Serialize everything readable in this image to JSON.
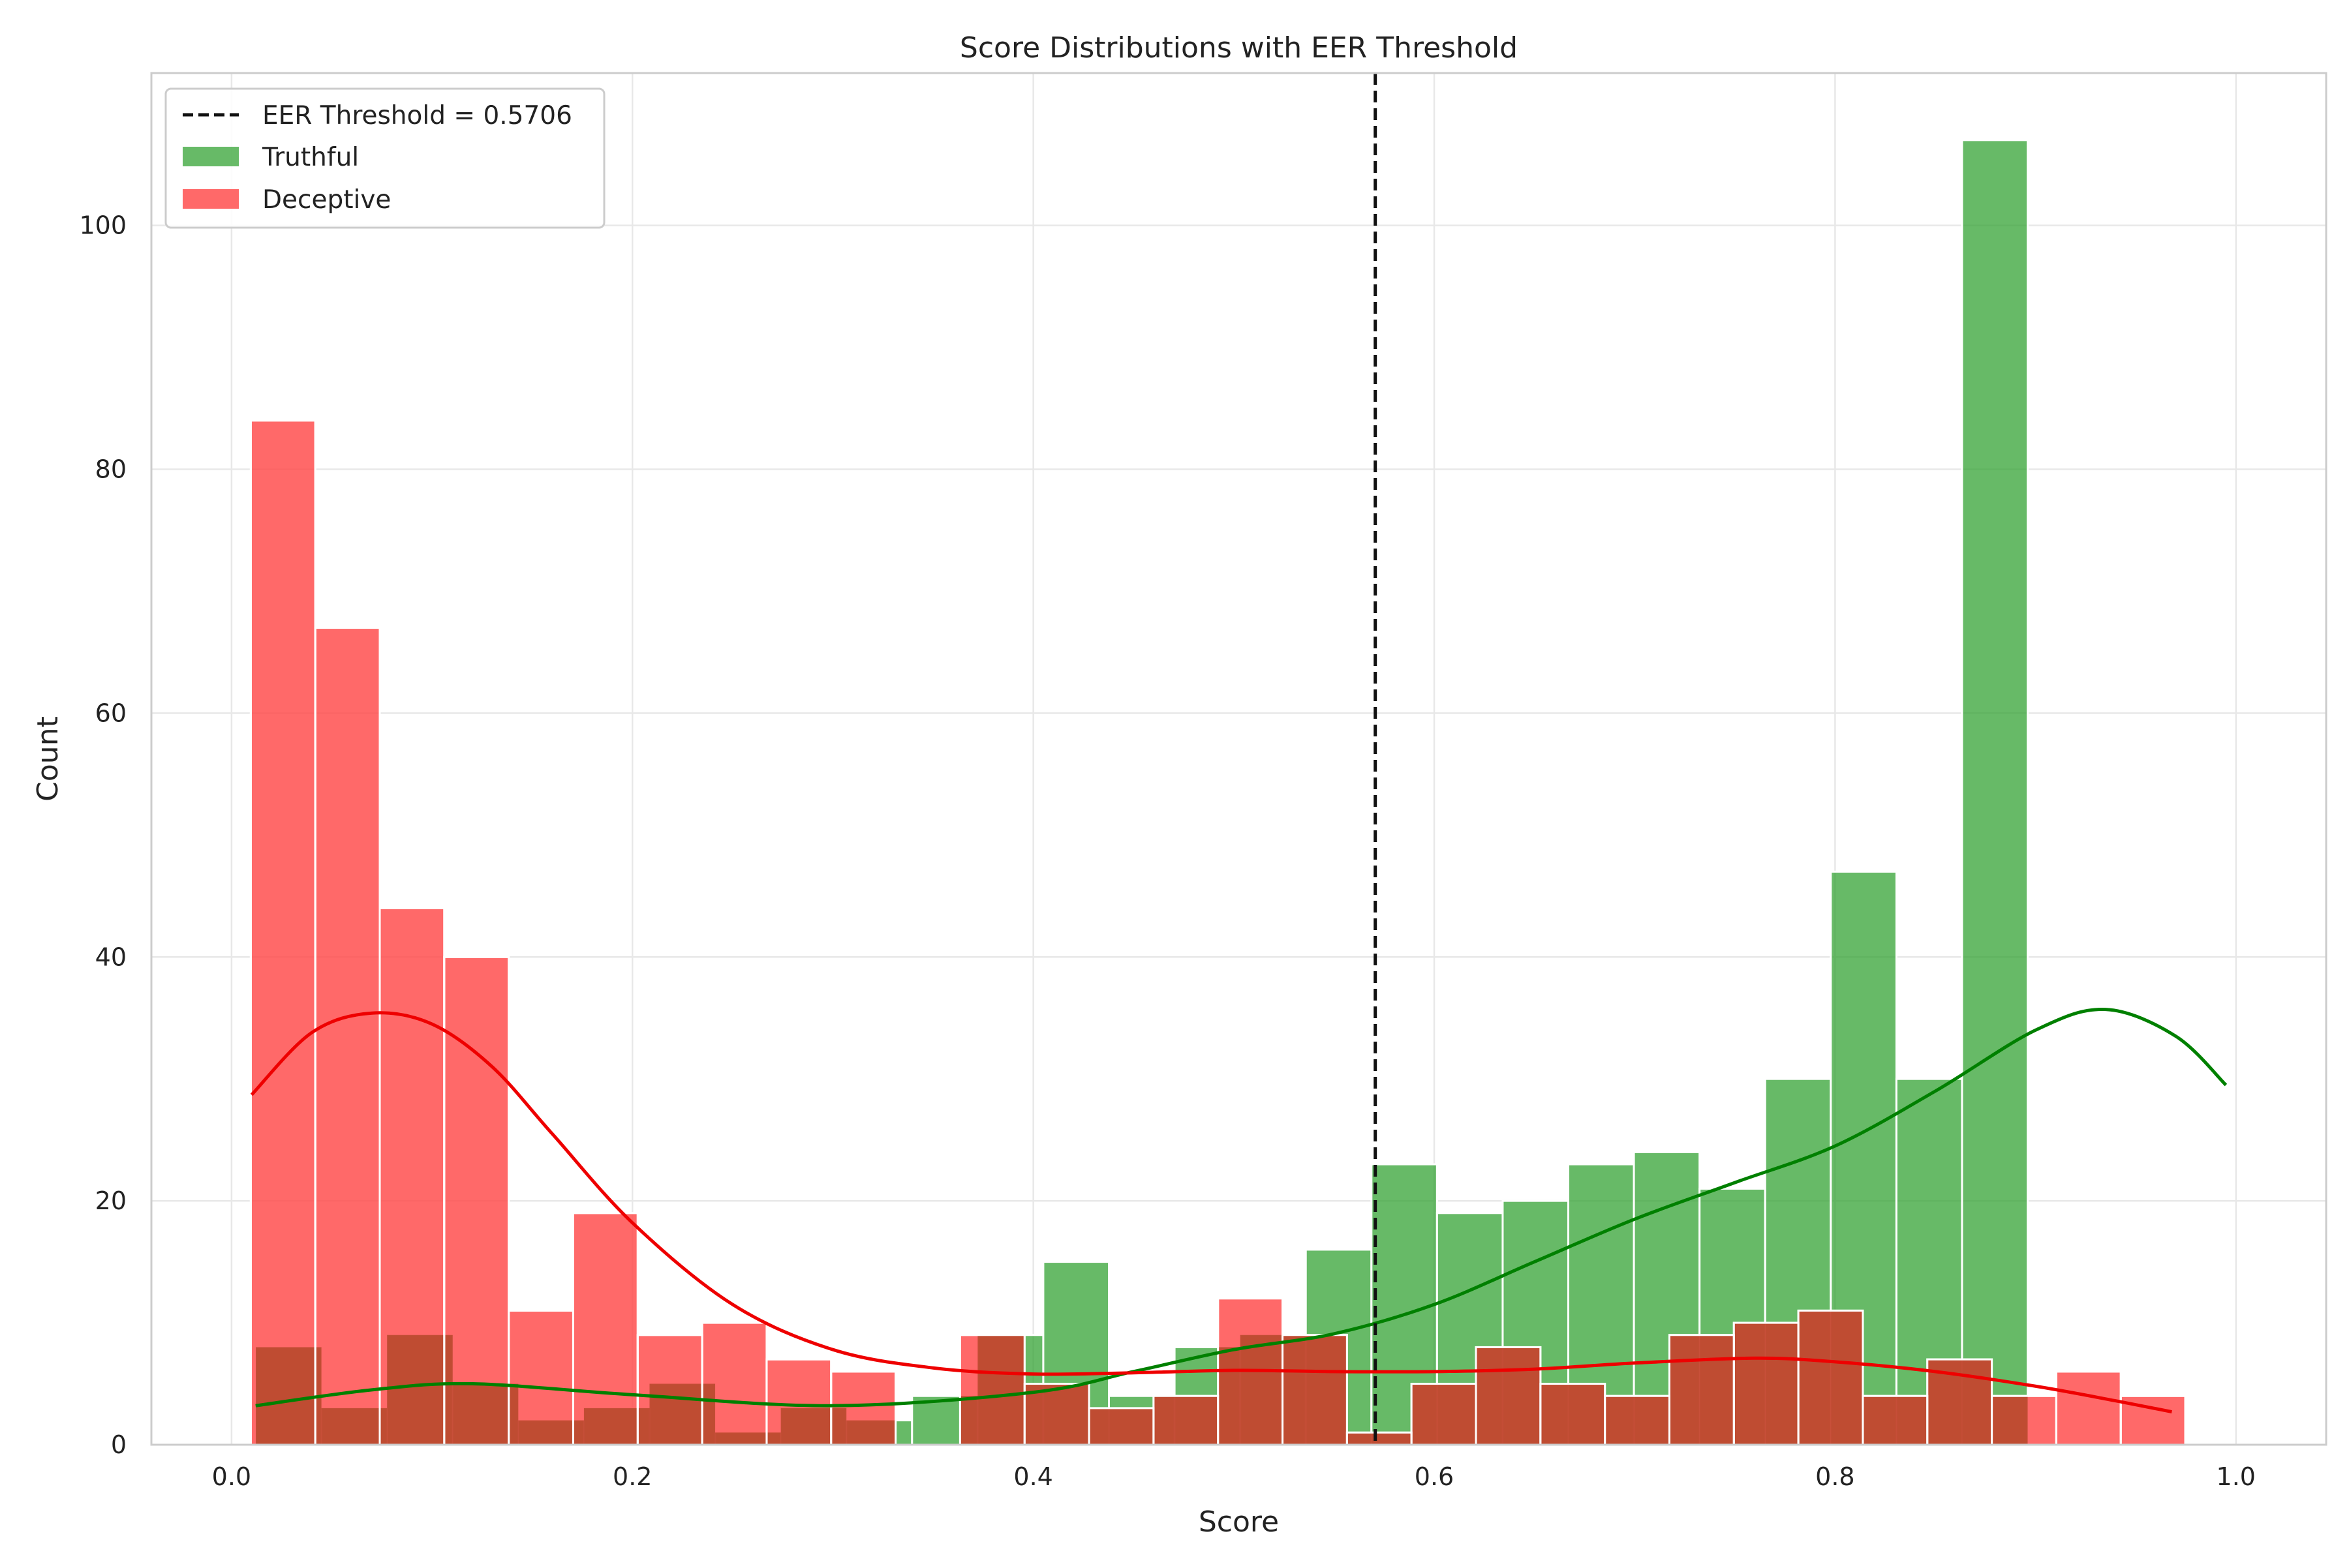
{
  "colors": {
    "truthful": "#2ca02c",
    "truthful_line": "#008000",
    "deceptive": "#ff4444",
    "deceptive_line": "#ee0000",
    "overlap": "#bb4a30",
    "threshold": "#111111",
    "grid": "#e8e8e8",
    "frame": "#cccccc"
  },
  "chart_data": {
    "type": "bar",
    "title": "Score Distributions with EER Threshold",
    "xlabel": "Score",
    "ylabel": "Count",
    "xlim": [
      -0.04,
      1.045
    ],
    "ylim": [
      0,
      112.5
    ],
    "x_ticks": [
      0.0,
      0.2,
      0.4,
      0.6,
      0.8,
      1.0
    ],
    "x_tick_labels": [
      "0.0",
      "0.2",
      "0.4",
      "0.6",
      "0.8",
      "1.0"
    ],
    "y_ticks": [
      0,
      20,
      40,
      60,
      80,
      100
    ],
    "y_tick_labels": [
      "0",
      "20",
      "40",
      "60",
      "80",
      "100"
    ],
    "grid": true,
    "legend_position": "top-left",
    "threshold": {
      "value": 0.5706,
      "label": "EER Threshold = 0.5706"
    },
    "series": [
      {
        "name": "Truthful",
        "bin_start": 0.0121,
        "bin_width": 0.03274,
        "counts": [
          8,
          3,
          9,
          5,
          2,
          3,
          5,
          1,
          3,
          2,
          4,
          9,
          15,
          4,
          8,
          9,
          16,
          23,
          19,
          20,
          23,
          24,
          21,
          30,
          47,
          30,
          107
        ],
        "kde": [
          [
            0.012,
            3.2
          ],
          [
            0.07,
            4.5
          ],
          [
            0.12,
            5.0
          ],
          [
            0.2,
            4.1
          ],
          [
            0.3,
            3.2
          ],
          [
            0.4,
            4.3
          ],
          [
            0.45,
            6.0
          ],
          [
            0.5,
            7.8
          ],
          [
            0.55,
            9.1
          ],
          [
            0.6,
            11.5
          ],
          [
            0.65,
            15.0
          ],
          [
            0.7,
            18.5
          ],
          [
            0.75,
            21.5
          ],
          [
            0.8,
            24.5
          ],
          [
            0.85,
            29.0
          ],
          [
            0.9,
            34.0
          ],
          [
            0.935,
            35.7
          ],
          [
            0.97,
            33.5
          ],
          [
            0.995,
            29.5
          ]
        ]
      },
      {
        "name": "Deceptive",
        "bin_start": 0.0096,
        "bin_width": 0.03217,
        "counts": [
          84,
          67,
          44,
          40,
          11,
          19,
          9,
          10,
          7,
          6,
          0,
          9,
          5,
          3,
          4,
          12,
          9,
          1,
          5,
          8,
          5,
          4,
          9,
          10,
          11,
          4,
          7,
          4,
          6,
          4
        ],
        "kde": [
          [
            0.01,
            28.7
          ],
          [
            0.04,
            33.8
          ],
          [
            0.07,
            35.4
          ],
          [
            0.1,
            34.5
          ],
          [
            0.13,
            31.0
          ],
          [
            0.16,
            25.5
          ],
          [
            0.2,
            18.2
          ],
          [
            0.25,
            11.5
          ],
          [
            0.3,
            7.8
          ],
          [
            0.35,
            6.3
          ],
          [
            0.4,
            5.8
          ],
          [
            0.45,
            5.9
          ],
          [
            0.5,
            6.1
          ],
          [
            0.55,
            6.0
          ],
          [
            0.6,
            6.0
          ],
          [
            0.65,
            6.2
          ],
          [
            0.7,
            6.7
          ],
          [
            0.76,
            7.1
          ],
          [
            0.8,
            6.8
          ],
          [
            0.85,
            6.0
          ],
          [
            0.9,
            4.8
          ],
          [
            0.94,
            3.6
          ],
          [
            0.968,
            2.7
          ]
        ]
      }
    ]
  }
}
